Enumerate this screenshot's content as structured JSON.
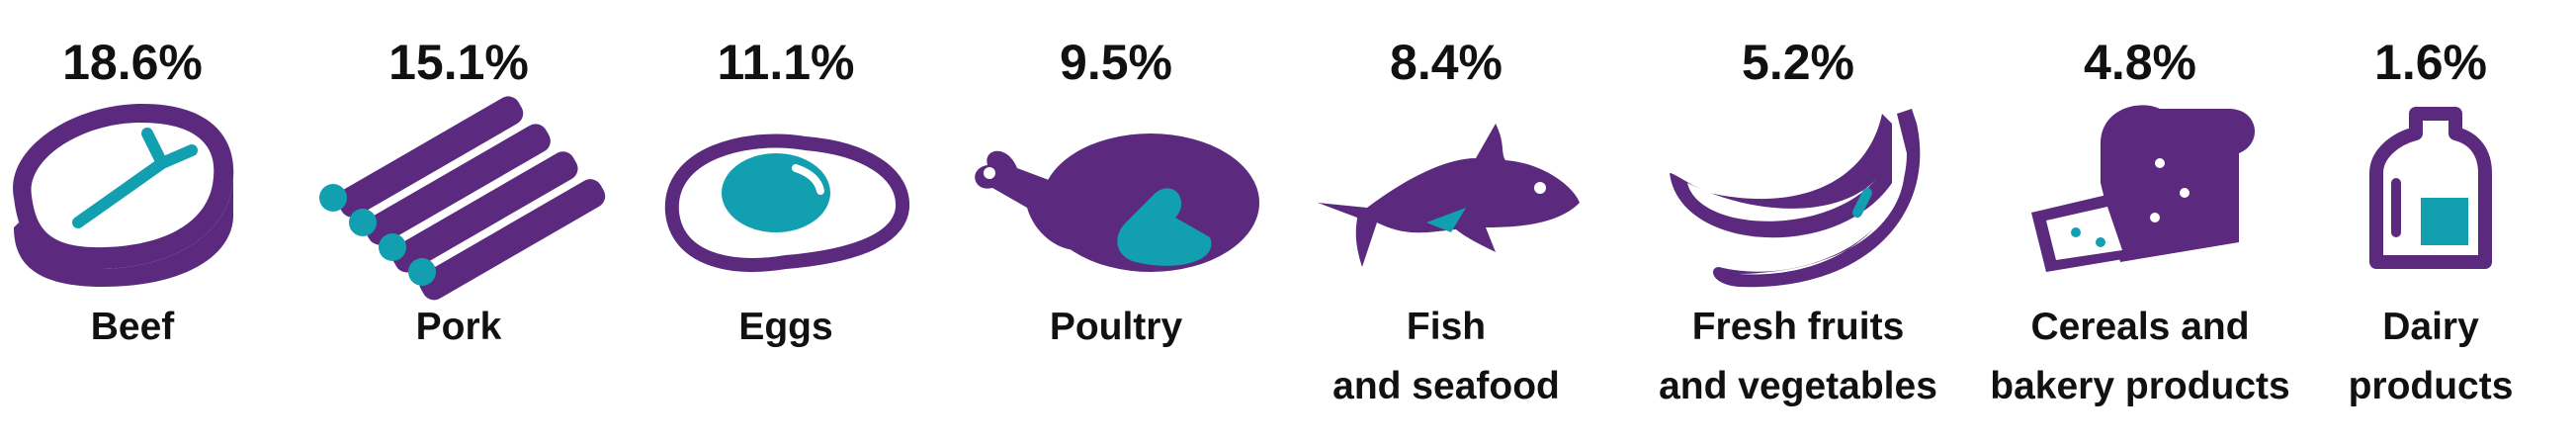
{
  "items": [
    {
      "value": "18.6%",
      "label": [
        "Beef"
      ]
    },
    {
      "value": "15.1%",
      "label": [
        "Pork"
      ]
    },
    {
      "value": "11.1%",
      "label": [
        "Eggs"
      ]
    },
    {
      "value": "9.5%",
      "label": [
        "Poultry"
      ]
    },
    {
      "value": "8.4%",
      "label": [
        "Fish",
        "and seafood"
      ]
    },
    {
      "value": "5.2%",
      "label": [
        "Fresh fruits",
        "and vegetables"
      ]
    },
    {
      "value": "4.8%",
      "label": [
        "Cereals and",
        "bakery products"
      ]
    },
    {
      "value": "1.6%",
      "label": [
        "Dairy",
        "products"
      ]
    }
  ]
}
